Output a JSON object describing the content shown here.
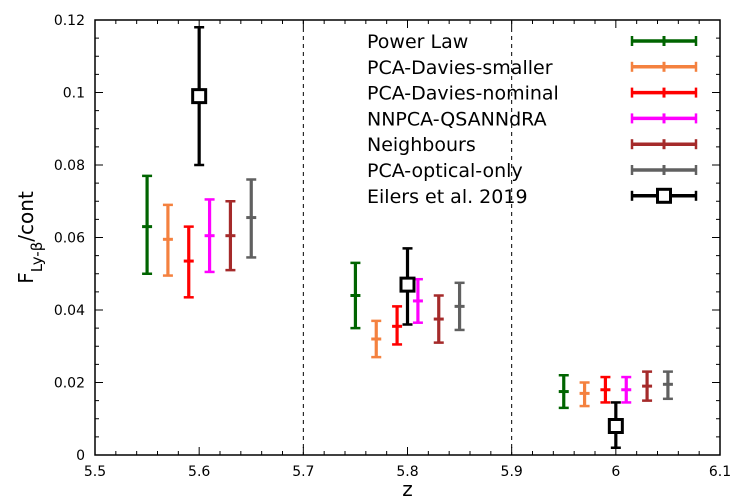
{
  "chart_data": {
    "type": "errorbar",
    "xlabel": "z",
    "ylabel": {
      "base": "F",
      "sub": "Ly-β",
      "suffix": "/cont"
    },
    "xlim": [
      5.5,
      6.1
    ],
    "ylim": [
      0,
      0.12
    ],
    "xticks": [
      5.5,
      5.6,
      5.7,
      5.8,
      5.9,
      6.0,
      6.1
    ],
    "xtick_labels": [
      "5.5",
      "5.6",
      "5.7",
      "5.8",
      "5.9",
      "6",
      "6.1"
    ],
    "yticks": [
      0,
      0.02,
      0.04,
      0.06,
      0.08,
      0.1,
      0.12
    ],
    "ytick_labels": [
      "0",
      "0.02",
      "0.04",
      "0.06",
      "0.08",
      "0.1",
      "0.12"
    ],
    "bin_edges": [
      5.7,
      5.9
    ],
    "series": [
      {
        "name": "Power Law",
        "color": "#006400",
        "marker": "plus",
        "points": [
          {
            "x": 5.55,
            "y": 0.063,
            "lo": 0.05,
            "hi": 0.077
          },
          {
            "x": 5.75,
            "y": 0.044,
            "lo": 0.035,
            "hi": 0.053
          },
          {
            "x": 5.95,
            "y": 0.0175,
            "lo": 0.013,
            "hi": 0.022
          }
        ]
      },
      {
        "name": "PCA-Davies-smaller",
        "color": "#f4813f",
        "marker": "plus",
        "points": [
          {
            "x": 5.57,
            "y": 0.0595,
            "lo": 0.0495,
            "hi": 0.069
          },
          {
            "x": 5.77,
            "y": 0.032,
            "lo": 0.027,
            "hi": 0.037
          },
          {
            "x": 5.97,
            "y": 0.017,
            "lo": 0.0135,
            "hi": 0.02
          }
        ]
      },
      {
        "name": "PCA-Davies-nominal",
        "color": "#ff0000",
        "marker": "plus",
        "points": [
          {
            "x": 5.59,
            "y": 0.0535,
            "lo": 0.0435,
            "hi": 0.063
          },
          {
            "x": 5.79,
            "y": 0.0355,
            "lo": 0.0305,
            "hi": 0.041
          },
          {
            "x": 5.99,
            "y": 0.018,
            "lo": 0.0145,
            "hi": 0.0215
          }
        ]
      },
      {
        "name": "NNPCA-QSANNdRA",
        "color": "#ff00ff",
        "marker": "plus",
        "points": [
          {
            "x": 5.61,
            "y": 0.0605,
            "lo": 0.0505,
            "hi": 0.0705
          },
          {
            "x": 5.81,
            "y": 0.0425,
            "lo": 0.0365,
            "hi": 0.0485
          },
          {
            "x": 6.01,
            "y": 0.018,
            "lo": 0.0145,
            "hi": 0.0215
          }
        ]
      },
      {
        "name": "Neighbours",
        "color": "#a52a2a",
        "marker": "plus",
        "points": [
          {
            "x": 5.63,
            "y": 0.0605,
            "lo": 0.051,
            "hi": 0.07
          },
          {
            "x": 5.83,
            "y": 0.0375,
            "lo": 0.031,
            "hi": 0.044
          },
          {
            "x": 6.03,
            "y": 0.019,
            "lo": 0.015,
            "hi": 0.023
          }
        ]
      },
      {
        "name": "PCA-optical-only",
        "color": "#606060",
        "marker": "plus",
        "points": [
          {
            "x": 5.65,
            "y": 0.0655,
            "lo": 0.0545,
            "hi": 0.076
          },
          {
            "x": 5.85,
            "y": 0.041,
            "lo": 0.0345,
            "hi": 0.0475
          },
          {
            "x": 6.05,
            "y": 0.0195,
            "lo": 0.0155,
            "hi": 0.023
          }
        ]
      },
      {
        "name": "Eilers et al. 2019",
        "color": "#000000",
        "marker": "square",
        "points": [
          {
            "x": 5.6,
            "y": 0.099,
            "lo": 0.08,
            "hi": 0.118
          },
          {
            "x": 5.8,
            "y": 0.047,
            "lo": 0.036,
            "hi": 0.057
          },
          {
            "x": 6.0,
            "y": 0.008,
            "lo": 0.002,
            "hi": 0.0145
          }
        ]
      }
    ],
    "legend_position": "top-right"
  }
}
